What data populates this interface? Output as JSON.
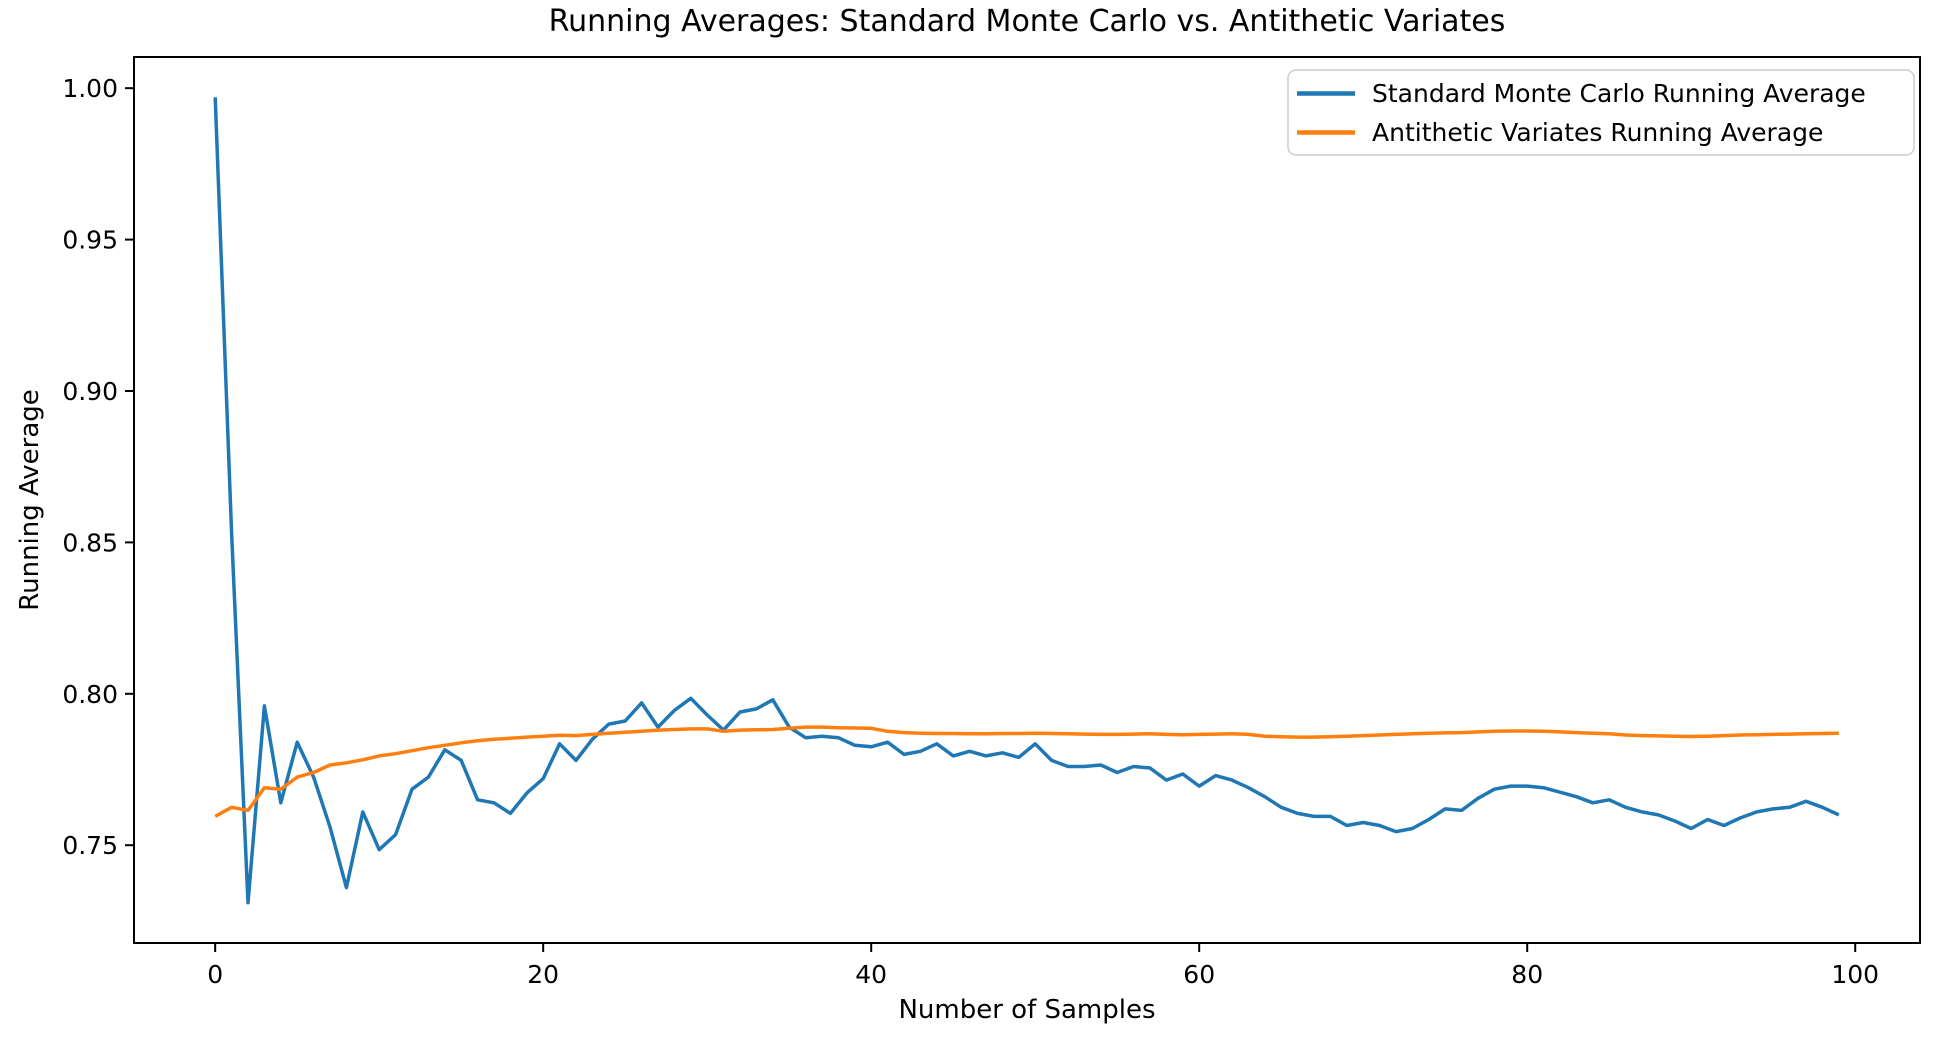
{
  "chart_data": {
    "type": "line",
    "title": "Running Averages: Standard Monte Carlo vs. Antithetic Variates",
    "xlabel": "Number of Samples",
    "ylabel": "Running Average",
    "grid": false,
    "legend_position": "upper right",
    "background": "#ffffff",
    "axis_color": "#000000",
    "text_color": "#000000",
    "legend": {
      "border_color": "#cccccc",
      "background": "#ffffff"
    },
    "xlim": [
      -4.95,
      103.95
    ],
    "ylim": [
      0.7177,
      1.0103
    ],
    "x_ticks": {
      "values": [
        0,
        20,
        40,
        60,
        80,
        100
      ],
      "labels": [
        "0",
        "20",
        "40",
        "60",
        "80",
        "100"
      ]
    },
    "y_ticks": {
      "values": [
        0.75,
        0.8,
        0.85,
        0.9,
        0.95,
        1.0
      ],
      "labels": [
        "0.75",
        "0.80",
        "0.85",
        "0.90",
        "0.95",
        "1.00"
      ]
    },
    "x": [
      0,
      1,
      2,
      3,
      4,
      5,
      6,
      7,
      8,
      9,
      10,
      11,
      12,
      13,
      14,
      15,
      16,
      17,
      18,
      19,
      20,
      21,
      22,
      23,
      24,
      25,
      26,
      27,
      28,
      29,
      30,
      31,
      32,
      33,
      34,
      35,
      36,
      37,
      38,
      39,
      40,
      41,
      42,
      43,
      44,
      45,
      46,
      47,
      48,
      49,
      50,
      51,
      52,
      53,
      54,
      55,
      56,
      57,
      58,
      59,
      60,
      61,
      62,
      63,
      64,
      65,
      66,
      67,
      68,
      69,
      70,
      71,
      72,
      73,
      74,
      75,
      76,
      77,
      78,
      79,
      80,
      81,
      82,
      83,
      84,
      85,
      86,
      87,
      88,
      89,
      90,
      91,
      92,
      93,
      94,
      95,
      96,
      97,
      98,
      99
    ],
    "series": [
      {
        "name": "Standard Monte Carlo Running Average",
        "color": "#1f77b4",
        "values": [
          0.997,
          0.853,
          0.731,
          0.796,
          0.764,
          0.784,
          0.7725,
          0.756,
          0.736,
          0.761,
          0.7485,
          0.7535,
          0.7685,
          0.7725,
          0.7815,
          0.778,
          0.765,
          0.764,
          0.7605,
          0.7672,
          0.772,
          0.7835,
          0.778,
          0.785,
          0.79,
          0.791,
          0.797,
          0.789,
          0.7945,
          0.7985,
          0.793,
          0.788,
          0.794,
          0.795,
          0.798,
          0.789,
          0.7855,
          0.786,
          0.7855,
          0.783,
          0.7825,
          0.784,
          0.78,
          0.781,
          0.7835,
          0.7795,
          0.781,
          0.7795,
          0.7805,
          0.779,
          0.7835,
          0.778,
          0.776,
          0.776,
          0.7765,
          0.774,
          0.776,
          0.7755,
          0.7715,
          0.7735,
          0.7695,
          0.773,
          0.7715,
          0.769,
          0.766,
          0.7625,
          0.7605,
          0.7595,
          0.7595,
          0.7565,
          0.7575,
          0.7565,
          0.7545,
          0.7555,
          0.7585,
          0.762,
          0.7615,
          0.7655,
          0.7685,
          0.7695,
          0.7695,
          0.769,
          0.7675,
          0.766,
          0.764,
          0.765,
          0.7625,
          0.761,
          0.76,
          0.758,
          0.7555,
          0.7585,
          0.7565,
          0.759,
          0.761,
          0.762,
          0.7625,
          0.7645,
          0.7625,
          0.76
        ]
      },
      {
        "name": "Antithetic Variates Running Average",
        "color": "#ff7f0e",
        "values": [
          0.7595,
          0.7625,
          0.7615,
          0.769,
          0.7685,
          0.7725,
          0.774,
          0.7765,
          0.7772,
          0.7782,
          0.7795,
          0.7802,
          0.7812,
          0.7822,
          0.783,
          0.7838,
          0.7845,
          0.785,
          0.7853,
          0.7857,
          0.786,
          0.7863,
          0.7862,
          0.7866,
          0.787,
          0.7873,
          0.7876,
          0.788,
          0.7882,
          0.7884,
          0.7884,
          0.7876,
          0.788,
          0.7881,
          0.7882,
          0.7886,
          0.789,
          0.789,
          0.7888,
          0.7887,
          0.7886,
          0.7876,
          0.7872,
          0.787,
          0.7869,
          0.7869,
          0.7868,
          0.7868,
          0.7869,
          0.7869,
          0.787,
          0.7869,
          0.7868,
          0.7867,
          0.7866,
          0.7866,
          0.7867,
          0.7868,
          0.7866,
          0.7865,
          0.7866,
          0.7867,
          0.7868,
          0.7866,
          0.786,
          0.7858,
          0.7857,
          0.7857,
          0.7858,
          0.786,
          0.7862,
          0.7864,
          0.7866,
          0.7868,
          0.787,
          0.7871,
          0.7872,
          0.7874,
          0.7876,
          0.7877,
          0.7877,
          0.7876,
          0.7874,
          0.7872,
          0.787,
          0.7868,
          0.7864,
          0.7862,
          0.7861,
          0.786,
          0.7859,
          0.786,
          0.7862,
          0.7864,
          0.7865,
          0.7866,
          0.7867,
          0.7868,
          0.7869,
          0.787
        ]
      }
    ]
  }
}
